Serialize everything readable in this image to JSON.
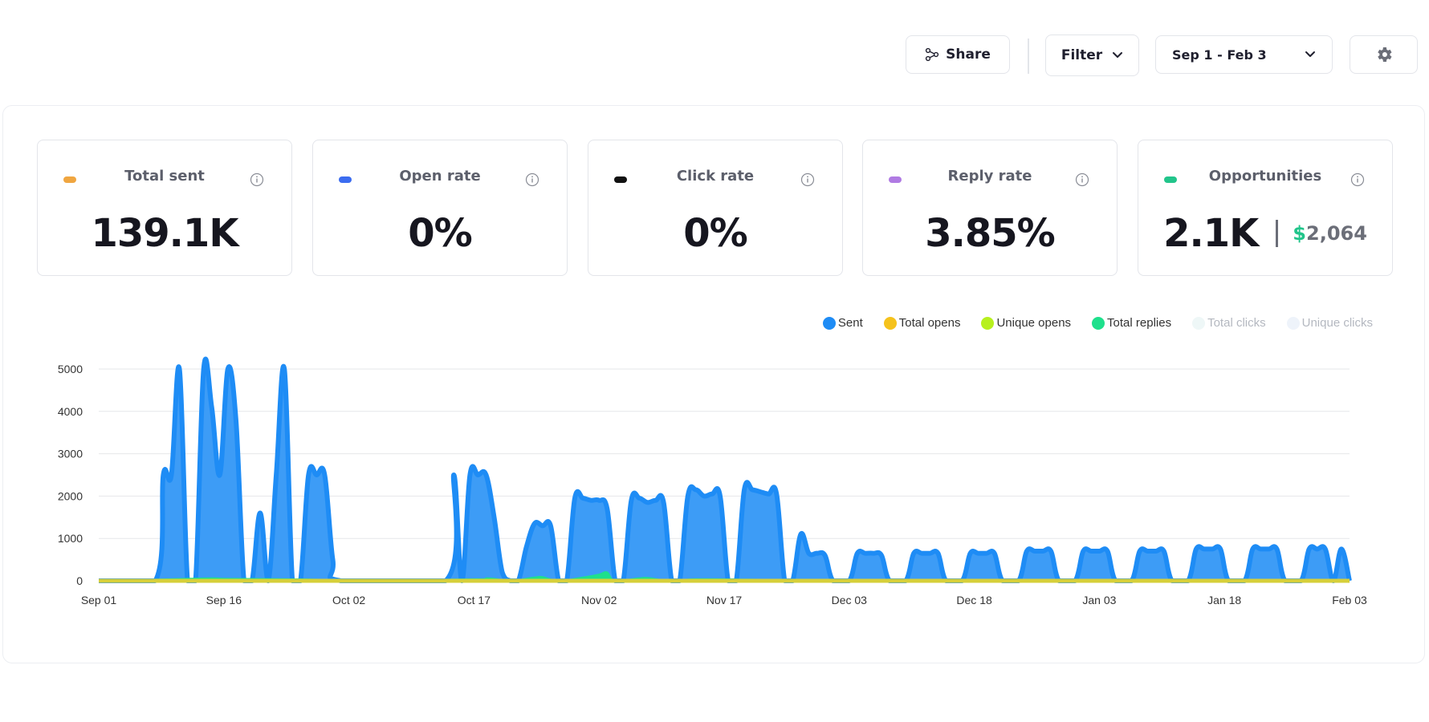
{
  "toolbar": {
    "share_label": "Share",
    "filter_label": "Filter",
    "date_range": "Sep 1 - Feb 3"
  },
  "stats": [
    {
      "label": "Total sent",
      "value": "139.1K",
      "color": "#f0a640"
    },
    {
      "label": "Open rate",
      "value": "0%",
      "color": "#3b6cf0"
    },
    {
      "label": "Click rate",
      "value": "0%",
      "color": "#111111"
    },
    {
      "label": "Reply rate",
      "value": "3.85%",
      "color": "#b07be3"
    },
    {
      "label": "Opportunities",
      "value": "2.1K",
      "money_symbol": "$",
      "money_value": "2,064",
      "color": "#22c58b"
    }
  ],
  "colors": {
    "sent": "#1e8cf5",
    "sent_fill": "#3d9cf6",
    "total_opens": "#f5c21c",
    "unique_opens": "#b7f01e",
    "total_replies": "#1ee08c",
    "total_clicks": "#eef7f7",
    "unique_clicks": "#eef3fa",
    "baseline": "#d6cf3a"
  },
  "chart_data": {
    "type": "area",
    "series_names": [
      "Sent",
      "Total opens",
      "Unique opens",
      "Total replies",
      "Total clicks",
      "Unique clicks"
    ],
    "series_hidden": [
      "Total clicks",
      "Unique clicks"
    ],
    "legend_position": "top-right",
    "ylim": [
      0,
      5000
    ],
    "yticks": [
      "0",
      "1000",
      "2000",
      "3000",
      "4000",
      "5000"
    ],
    "x_range": [
      "2023-09-01",
      "2024-02-03"
    ],
    "xticks": [
      "Sep 01",
      "Sep 16",
      "Oct 02",
      "Oct 17",
      "Nov 02",
      "Nov 17",
      "Dec 03",
      "Dec 18",
      "Jan 03",
      "Jan 18",
      "Feb 03"
    ],
    "grid": "horizontal",
    "series": [
      {
        "name": "Sent",
        "points": [
          [
            "2023-09-01",
            0
          ],
          [
            "2023-09-08",
            0
          ],
          [
            "2023-09-09",
            2500
          ],
          [
            "2023-09-10",
            2500
          ],
          [
            "2023-09-11",
            5000
          ],
          [
            "2023-09-12",
            0
          ],
          [
            "2023-09-13",
            0
          ],
          [
            "2023-09-14",
            5000
          ],
          [
            "2023-09-15",
            4100
          ],
          [
            "2023-09-16",
            2500
          ],
          [
            "2023-09-17",
            5000
          ],
          [
            "2023-09-18",
            3800
          ],
          [
            "2023-09-19",
            0
          ],
          [
            "2023-09-20",
            0
          ],
          [
            "2023-09-21",
            1600
          ],
          [
            "2023-09-22",
            0
          ],
          [
            "2023-09-23",
            2500
          ],
          [
            "2023-09-24",
            5000
          ],
          [
            "2023-09-25",
            0
          ],
          [
            "2023-09-26",
            0
          ],
          [
            "2023-09-27",
            2500
          ],
          [
            "2023-09-28",
            2500
          ],
          [
            "2023-09-29",
            2500
          ],
          [
            "2023-09-30",
            500
          ],
          [
            "2023-10-01",
            0
          ],
          [
            "2023-10-14",
            0
          ],
          [
            "2023-10-15",
            2500
          ],
          [
            "2023-10-16",
            0
          ],
          [
            "2023-10-17",
            2500
          ],
          [
            "2023-10-18",
            2500
          ],
          [
            "2023-10-19",
            2500
          ],
          [
            "2023-10-20",
            1500
          ],
          [
            "2023-10-21",
            200
          ],
          [
            "2023-10-22",
            0
          ],
          [
            "2023-10-23",
            0
          ],
          [
            "2023-10-24",
            800
          ],
          [
            "2023-10-25",
            1350
          ],
          [
            "2023-10-26",
            1300
          ],
          [
            "2023-10-27",
            1300
          ],
          [
            "2023-10-28",
            0
          ],
          [
            "2023-10-29",
            0
          ],
          [
            "2023-10-30",
            1950
          ],
          [
            "2023-10-31",
            1950
          ],
          [
            "2023-11-01",
            1900
          ],
          [
            "2023-11-02",
            1900
          ],
          [
            "2023-11-03",
            1700
          ],
          [
            "2023-11-04",
            0
          ],
          [
            "2023-11-05",
            0
          ],
          [
            "2023-11-06",
            1900
          ],
          [
            "2023-11-07",
            1950
          ],
          [
            "2023-11-08",
            1850
          ],
          [
            "2023-11-09",
            1900
          ],
          [
            "2023-11-10",
            1850
          ],
          [
            "2023-11-11",
            0
          ],
          [
            "2023-11-12",
            0
          ],
          [
            "2023-11-13",
            2000
          ],
          [
            "2023-11-14",
            2150
          ],
          [
            "2023-11-15",
            2000
          ],
          [
            "2023-11-16",
            2050
          ],
          [
            "2023-11-17",
            2000
          ],
          [
            "2023-11-18",
            0
          ],
          [
            "2023-11-19",
            0
          ],
          [
            "2023-11-20",
            2150
          ],
          [
            "2023-11-21",
            2150
          ],
          [
            "2023-11-22",
            2100
          ],
          [
            "2023-11-23",
            2050
          ],
          [
            "2023-11-24",
            2050
          ],
          [
            "2023-11-25",
            0
          ],
          [
            "2023-11-26",
            0
          ],
          [
            "2023-11-27",
            1100
          ],
          [
            "2023-11-28",
            650
          ],
          [
            "2023-11-29",
            650
          ],
          [
            "2023-11-30",
            600
          ],
          [
            "2023-12-01",
            0
          ],
          [
            "2023-12-03",
            0
          ],
          [
            "2023-12-04",
            650
          ],
          [
            "2023-12-05",
            650
          ],
          [
            "2023-12-06",
            650
          ],
          [
            "2023-12-07",
            600
          ],
          [
            "2023-12-08",
            0
          ],
          [
            "2023-12-10",
            0
          ],
          [
            "2023-12-11",
            650
          ],
          [
            "2023-12-12",
            650
          ],
          [
            "2023-12-13",
            650
          ],
          [
            "2023-12-14",
            650
          ],
          [
            "2023-12-15",
            0
          ],
          [
            "2023-12-17",
            0
          ],
          [
            "2023-12-18",
            650
          ],
          [
            "2023-12-19",
            650
          ],
          [
            "2023-12-20",
            650
          ],
          [
            "2023-12-21",
            650
          ],
          [
            "2023-12-22",
            0
          ],
          [
            "2023-12-24",
            0
          ],
          [
            "2023-12-25",
            700
          ],
          [
            "2023-12-26",
            700
          ],
          [
            "2023-12-27",
            700
          ],
          [
            "2023-12-28",
            700
          ],
          [
            "2023-12-29",
            0
          ],
          [
            "2023-12-31",
            0
          ],
          [
            "2024-01-01",
            700
          ],
          [
            "2024-01-02",
            700
          ],
          [
            "2024-01-03",
            700
          ],
          [
            "2024-01-04",
            700
          ],
          [
            "2024-01-05",
            0
          ],
          [
            "2024-01-07",
            0
          ],
          [
            "2024-01-08",
            700
          ],
          [
            "2024-01-09",
            700
          ],
          [
            "2024-01-10",
            700
          ],
          [
            "2024-01-11",
            700
          ],
          [
            "2024-01-12",
            0
          ],
          [
            "2024-01-14",
            0
          ],
          [
            "2024-01-15",
            750
          ],
          [
            "2024-01-16",
            750
          ],
          [
            "2024-01-17",
            750
          ],
          [
            "2024-01-18",
            750
          ],
          [
            "2024-01-19",
            0
          ],
          [
            "2024-01-21",
            0
          ],
          [
            "2024-01-22",
            750
          ],
          [
            "2024-01-23",
            750
          ],
          [
            "2024-01-24",
            750
          ],
          [
            "2024-01-25",
            750
          ],
          [
            "2024-01-26",
            0
          ],
          [
            "2024-01-28",
            0
          ],
          [
            "2024-01-29",
            750
          ],
          [
            "2024-01-30",
            750
          ],
          [
            "2024-01-31",
            750
          ],
          [
            "2024-02-01",
            0
          ],
          [
            "2024-02-02",
            750
          ],
          [
            "2024-02-03",
            0
          ]
        ]
      },
      {
        "name": "Total replies",
        "points": [
          [
            "2023-09-01",
            0
          ],
          [
            "2023-09-10",
            40
          ],
          [
            "2023-09-15",
            60
          ],
          [
            "2023-09-17",
            50
          ],
          [
            "2023-09-24",
            40
          ],
          [
            "2023-09-28",
            30
          ],
          [
            "2023-10-01",
            0
          ],
          [
            "2023-10-18",
            40
          ],
          [
            "2023-10-19",
            60
          ],
          [
            "2023-10-20",
            50
          ],
          [
            "2023-10-22",
            0
          ],
          [
            "2023-10-25",
            80
          ],
          [
            "2023-10-26",
            90
          ],
          [
            "2023-10-28",
            0
          ],
          [
            "2023-10-31",
            80
          ],
          [
            "2023-11-02",
            150
          ],
          [
            "2023-11-03",
            200
          ],
          [
            "2023-11-04",
            0
          ],
          [
            "2023-11-07",
            60
          ],
          [
            "2023-11-08",
            70
          ],
          [
            "2023-11-11",
            0
          ],
          [
            "2023-11-14",
            40
          ],
          [
            "2023-11-21",
            30
          ],
          [
            "2023-12-01",
            20
          ],
          [
            "2024-02-03",
            20
          ]
        ]
      },
      {
        "name": "Total opens",
        "value": 0
      },
      {
        "name": "Unique opens",
        "value": 0
      }
    ]
  }
}
